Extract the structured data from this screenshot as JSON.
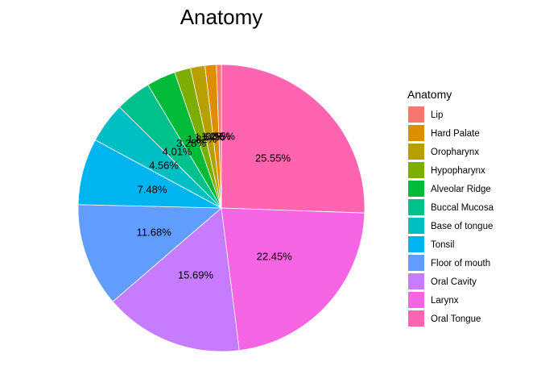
{
  "chart_data": {
    "type": "pie",
    "title": "Anatomy",
    "legend_title": "Anatomy",
    "legend_position": "right",
    "categories": [
      "Lip",
      "Hard Palate",
      "Oropharynx",
      "Hypopharynx",
      "Alveolar Ridge",
      "Buccal Mucosa",
      "Base of tongue",
      "Tonsil",
      "Floor of mouth",
      "Oral Cavity",
      "Larynx",
      "Oral Tongue"
    ],
    "values": [
      0.55,
      1.28,
      1.64,
      1.82,
      3.28,
      4.01,
      4.56,
      7.48,
      11.68,
      15.69,
      22.45,
      25.55
    ],
    "value_labels": [
      "0.55%",
      "1.28%",
      "1.64%",
      "1.82%",
      "3.28%",
      "4.01%",
      "4.56%",
      "7.48%",
      "11.68%",
      "15.69%",
      "22.45%",
      "25.55%"
    ],
    "colors": [
      "#F8766D",
      "#DE8C00",
      "#B79F00",
      "#7CAE00",
      "#00BA38",
      "#00C08B",
      "#00BFC4",
      "#00B4F0",
      "#619CFF",
      "#C77CFF",
      "#F564E3",
      "#FF64B0"
    ]
  }
}
